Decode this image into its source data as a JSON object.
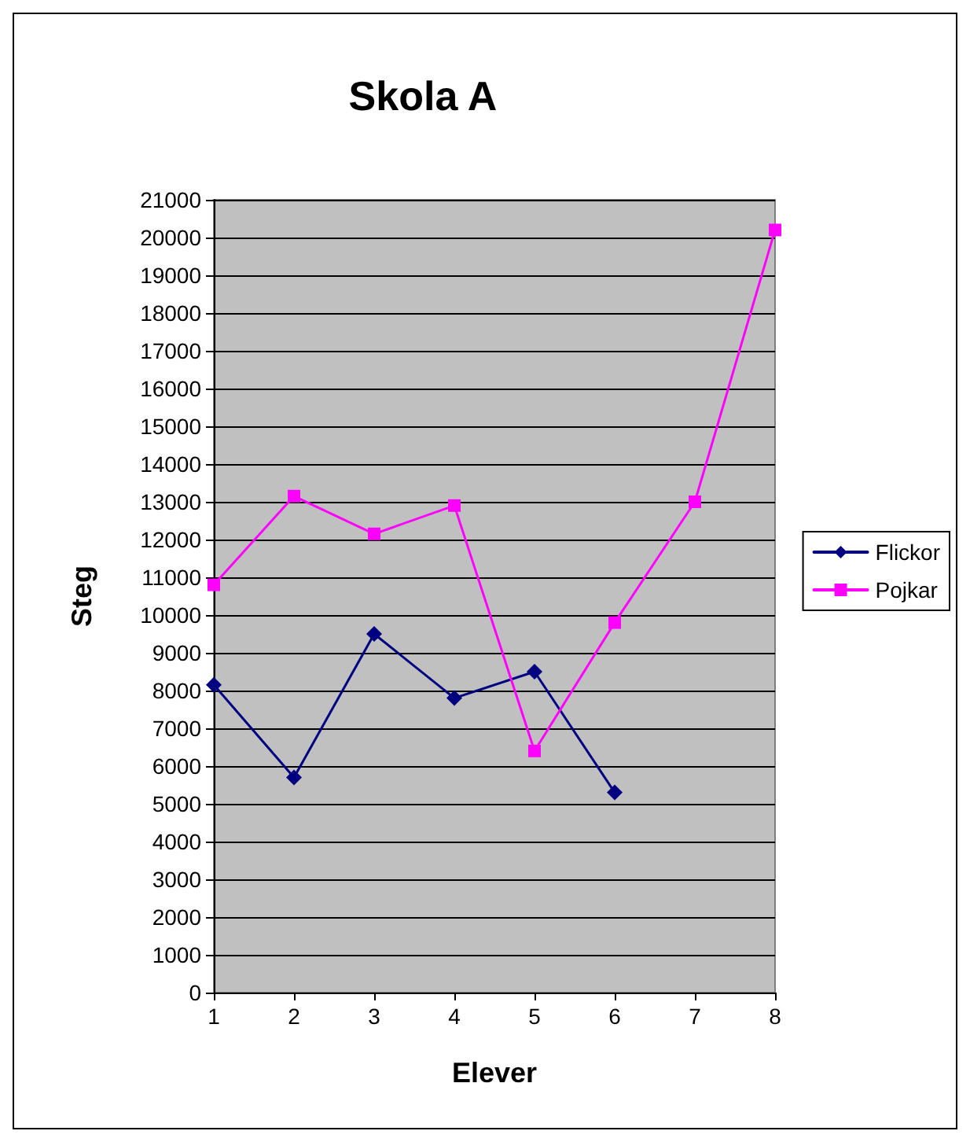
{
  "chart_data": {
    "type": "line",
    "title": "Skola A",
    "xlabel": "Elever",
    "ylabel": "Steg",
    "categories": [
      "1",
      "2",
      "3",
      "4",
      "5",
      "6",
      "7",
      "8"
    ],
    "series": [
      {
        "name": "Flickor",
        "color": "#000080",
        "values": [
          8150,
          5700,
          9500,
          7800,
          8500,
          5300,
          null,
          null
        ],
        "marker": "diamond"
      },
      {
        "name": "Pojkar",
        "color": "#ff00ff",
        "values": [
          10800,
          13150,
          12150,
          12900,
          6400,
          9800,
          13000,
          20200
        ],
        "marker": "square"
      }
    ],
    "ylim": [
      0,
      21000
    ],
    "yticks": [
      0,
      1000,
      2000,
      3000,
      4000,
      5000,
      6000,
      7000,
      8000,
      9000,
      10000,
      11000,
      12000,
      13000,
      14000,
      15000,
      16000,
      17000,
      18000,
      19000,
      20000,
      21000
    ],
    "grid": "y",
    "legend": "right",
    "line_style": "solid"
  }
}
